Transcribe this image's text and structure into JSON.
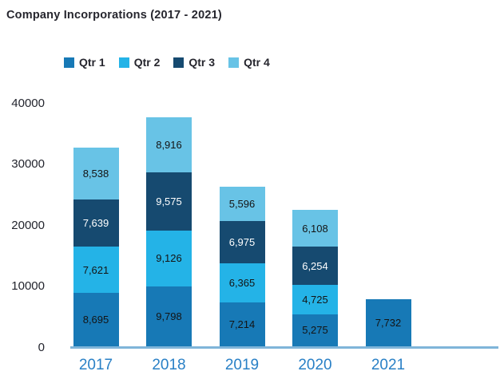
{
  "title": "Company Incorporations (2017 - 2021)",
  "chart_data": {
    "type": "bar",
    "stacked": true,
    "title": "Company Incorporations (2017 - 2021)",
    "categories": [
      "2017",
      "2018",
      "2019",
      "2020",
      "2021"
    ],
    "series": [
      {
        "name": "Qtr 1",
        "color": "#1779B6",
        "label_color": "#141414",
        "values": [
          8695,
          9798,
          7214,
          5275,
          7732
        ]
      },
      {
        "name": "Qtr 2",
        "color": "#24B3E7",
        "label_color": "#141414",
        "values": [
          7621,
          9126,
          6365,
          4725,
          null
        ]
      },
      {
        "name": "Qtr 3",
        "color": "#164A70",
        "label_color": "#ffffff",
        "values": [
          7639,
          9575,
          6975,
          6254,
          null
        ]
      },
      {
        "name": "Qtr 4",
        "color": "#68C3E6",
        "label_color": "#141414",
        "values": [
          8538,
          8916,
          5596,
          6108,
          null
        ]
      }
    ],
    "totals_by_category": [
      32493,
      37415,
      26150,
      22362,
      7732
    ],
    "y_ticks": [
      0,
      10000,
      20000,
      30000,
      40000
    ],
    "ylim": [
      0,
      40000
    ],
    "grid": false,
    "legend_position": "top-left",
    "legend_entries": [
      "Qtr 1",
      "Qtr 2",
      "Qtr 3",
      "Qtr 4"
    ],
    "colors": {
      "axis_line": "#7FB5D9",
      "category_labels": "#2980C6",
      "tick_labels": "#23252E",
      "title_text": "#26262E"
    }
  }
}
